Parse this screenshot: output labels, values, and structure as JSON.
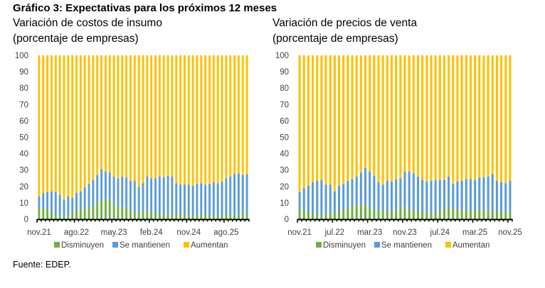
{
  "title": "Gráfico 3: Expectativas para los próximos 12 meses",
  "source": "Fuente: EDEP.",
  "colors": {
    "Disminuyen": "#70AD47",
    "Se mantienen": "#5B9BD5",
    "Aumentan": "#FFC000"
  },
  "chart_data": [
    {
      "type": "bar",
      "stacked": true,
      "title": "Variación de costos de insumo",
      "subtitle": "(porcentaje de empresas)",
      "xlabel": "",
      "ylabel": "",
      "ylim": [
        0,
        100
      ],
      "yticks": [
        0,
        10,
        20,
        30,
        40,
        50,
        60,
        70,
        80,
        90,
        100
      ],
      "x_tick_labels": [
        "nov.21",
        "ago.22",
        "may.23",
        "feb.24",
        "nov.24",
        "ago.25"
      ],
      "x_tick_label_every": 9,
      "grid": false,
      "legend": [
        "Disminuyen",
        "Se mantienen",
        "Aumentan"
      ],
      "legend_position": "bottom",
      "n_bars": 51,
      "series": [
        {
          "name": "Disminuyen",
          "values": [
            7,
            6.5,
            7,
            4,
            3,
            2,
            1.5,
            2,
            3.5,
            5,
            6,
            7,
            7.5,
            8.5,
            10,
            12.5,
            12,
            12.5,
            9.5,
            7,
            7,
            7,
            6,
            4,
            4,
            5,
            5.5,
            4.5,
            4.5,
            3,
            3,
            2.5,
            3,
            3.5,
            3,
            2.5,
            2,
            2,
            2.5,
            3,
            3,
            2.5,
            2,
            2.5,
            2,
            3,
            2.5,
            2.5,
            2.5,
            3.5,
            4
          ]
        },
        {
          "name": "Se mantienen",
          "values": [
            7,
            9.5,
            9.5,
            13,
            13.5,
            13,
            10.5,
            12,
            9.5,
            11,
            11,
            12.5,
            14,
            15.5,
            17,
            18,
            17,
            16,
            16.5,
            18,
            19,
            18.5,
            17.5,
            19.5,
            15.5,
            17,
            20.5,
            20.5,
            20.5,
            23,
            22.5,
            24,
            23,
            18.5,
            18,
            18.5,
            19,
            18.5,
            19,
            19,
            18,
            19,
            20.5,
            19.5,
            21,
            22,
            23.5,
            25,
            25.5,
            23.5,
            23.5
          ]
        },
        {
          "name": "Aumentan",
          "values": [
            86,
            84,
            83.5,
            83,
            83.5,
            85,
            88,
            86,
            87,
            84,
            83,
            80.5,
            78.5,
            76,
            73,
            69.5,
            71,
            71.5,
            74,
            75,
            74,
            74.5,
            76.5,
            76.5,
            80.5,
            78,
            74,
            75,
            75,
            74,
            74.5,
            73.5,
            74,
            78,
            79,
            79,
            79,
            79.5,
            78.5,
            78,
            79,
            78.5,
            77.5,
            78,
            77,
            75,
            74,
            72.5,
            72,
            73,
            72.5
          ]
        }
      ]
    },
    {
      "type": "bar",
      "stacked": true,
      "title": "Variación de precios de venta",
      "subtitle": "(porcentaje de empresas)",
      "xlabel": "",
      "ylabel": "",
      "ylim": [
        0,
        100
      ],
      "yticks": [
        0,
        10,
        20,
        30,
        40,
        50,
        60,
        70,
        80,
        90,
        100
      ],
      "x_tick_labels": [
        "nov.21",
        "jul.22",
        "mar.23",
        "nov.23",
        "jul.24",
        "mar.25",
        "nov.25"
      ],
      "x_tick_label_every": 8,
      "grid": false,
      "legend": [
        "Disminuyen",
        "Se mantienen",
        "Aumentan"
      ],
      "legend_position": "bottom",
      "n_bars": 49,
      "series": [
        {
          "name": "Disminuyen",
          "values": [
            6.5,
            5.5,
            4.5,
            3,
            3,
            3,
            3,
            3.5,
            4,
            5,
            6,
            7,
            8,
            9,
            9,
            9,
            7,
            6,
            5.5,
            5.5,
            5,
            5,
            6,
            7.5,
            7.5,
            6,
            5.5,
            5,
            4.5,
            4,
            4,
            4,
            5.5,
            6.5,
            7,
            6,
            6,
            5.5,
            6,
            5.5,
            5.5,
            6,
            6,
            5.5,
            5,
            5,
            4.5,
            4.5,
            4.5
          ]
        },
        {
          "name": "Se mantienen",
          "values": [
            10,
            13.5,
            16,
            19.5,
            20.5,
            21,
            18,
            17.5,
            13,
            15.5,
            15.5,
            16.5,
            16.5,
            17,
            19.5,
            22.5,
            22,
            20.5,
            17,
            15.5,
            18.5,
            18,
            18.5,
            17.5,
            21.5,
            23,
            22.5,
            21,
            19.5,
            19,
            19.5,
            20,
            18.5,
            17.5,
            19,
            15.5,
            17,
            18,
            18.5,
            19,
            18.5,
            19.5,
            19.5,
            20.5,
            22.5,
            18.5,
            18,
            17.5,
            19
          ]
        },
        {
          "name": "Aumentan",
          "values": [
            83.5,
            81,
            79.5,
            77.5,
            76.5,
            76,
            79,
            79,
            83,
            79.5,
            78.5,
            76.5,
            75.5,
            74,
            71.5,
            68.5,
            71,
            73.5,
            77.5,
            79,
            76.5,
            77,
            75.5,
            75,
            71,
            71,
            72,
            74,
            76,
            77,
            76.5,
            76,
            76,
            76,
            74,
            78.5,
            77,
            76.5,
            75.5,
            75.5,
            76,
            74.5,
            74.5,
            74,
            72.5,
            76.5,
            77.5,
            78,
            76.5
          ]
        }
      ]
    }
  ]
}
